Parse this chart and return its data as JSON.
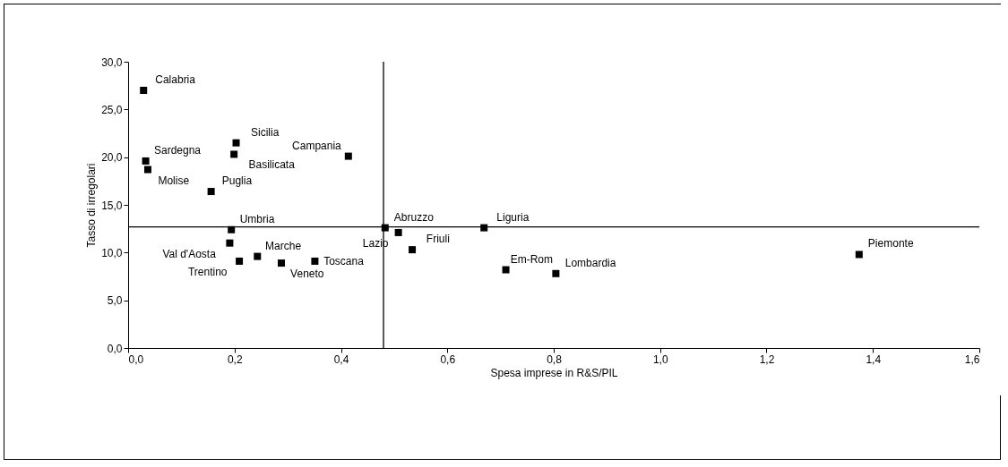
{
  "chart_data": {
    "type": "scatter",
    "xlabel": "Spesa imprese in R&S/PIL",
    "ylabel": "Tasso di irregolari",
    "x": [
      0.029,
      0.203,
      0.033,
      0.414,
      0.199,
      0.037,
      0.156,
      0.483,
      0.508,
      0.669,
      0.194,
      0.191,
      0.243,
      0.534,
      0.209,
      0.288,
      0.351,
      0.71,
      0.804,
      1.374
    ],
    "values": [
      27.0,
      21.5,
      19.6,
      20.1,
      20.3,
      18.7,
      16.4,
      12.6,
      12.1,
      12.6,
      12.4,
      11.0,
      9.6,
      10.3,
      9.1,
      8.9,
      9.1,
      8.2,
      7.8,
      9.8
    ],
    "value_labels": [
      "Calabria",
      "Sicilia",
      "Sardegna",
      "Campania",
      "Basilicata",
      "Molise",
      "Puglia",
      "Abruzzo",
      "Lazio",
      "Liguria",
      "Umbria",
      "Val d'Aosta",
      "Marche",
      "Friuli",
      "Trentino",
      "Veneto",
      "Toscana",
      "Em-Rom",
      "Lombardia",
      "Piemonte"
    ],
    "color": "#000000",
    "marker": "square",
    "grid": false,
    "xlim": [
      0,
      1.6
    ],
    "ylim": [
      0,
      30
    ],
    "xticks": [
      {
        "value": 0,
        "label": "0,0"
      },
      {
        "value": 0.2,
        "label": "0,2"
      },
      {
        "value": 0.4,
        "label": "0,4"
      },
      {
        "value": 0.6,
        "label": "0,6"
      },
      {
        "value": 0.8,
        "label": "0,8"
      },
      {
        "value": 1.0,
        "label": "1,0"
      },
      {
        "value": 1.2,
        "label": "1,2"
      },
      {
        "value": 1.4,
        "label": "1,4"
      },
      {
        "value": 1.6,
        "label": "1,6"
      }
    ],
    "yticks": [
      {
        "value": 0,
        "label": "0,0"
      },
      {
        "value": 5,
        "label": "5,0"
      },
      {
        "value": 10,
        "label": "10,0"
      },
      {
        "value": 15,
        "label": "15,0"
      },
      {
        "value": 20,
        "label": "20,0"
      },
      {
        "value": 25,
        "label": "25,0"
      },
      {
        "value": 30,
        "label": "30,0"
      }
    ],
    "ref_lines": [
      {
        "axis": "x",
        "value": 0.48,
        "color": "#000000"
      },
      {
        "axis": "y",
        "value": 12.7,
        "color": "#000000"
      }
    ]
  }
}
